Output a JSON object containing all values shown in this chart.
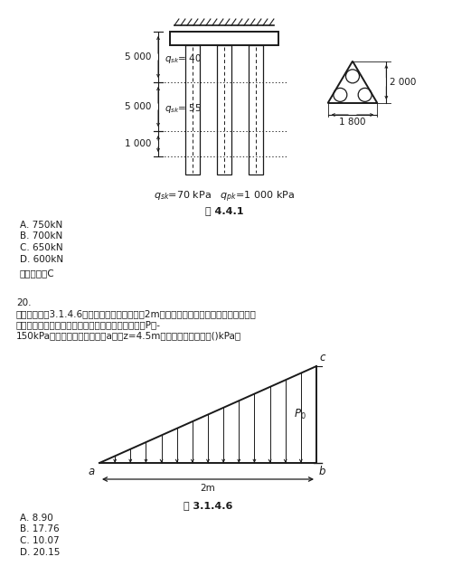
{
  "bg_color": "#ffffff",
  "fig_width": 5.0,
  "fig_height": 6.47,
  "dpi": 100,
  "section1": {
    "title": "图 4.4.1",
    "options": [
      "A. 750kN",
      "B. 700kN",
      "C. 650kN",
      "D. 600kN"
    ],
    "answer": "正确答案：C",
    "dim_5000_1": "5 000",
    "dim_5000_2": "5 000",
    "dim_1000": "1 000",
    "q_sk_40": "qₖₖ= 40",
    "q_sk_55": "qₖₖ= 55",
    "dim_2000": "2 000",
    "dim_1800": "1 800"
  },
  "section2": {
    "title": "图 3.1.4.6",
    "question_num": "20.",
    "question_text1": "单选题：如图3.1.4.6所示，已知条形基础基宽2m，作用在基底上的相应于荷载效应标准",
    "question_text2": "组合时的三角形荷载引起的基底附加压力值的最大值P。-",
    "question_text3": "150kPa，则此条形基础边缘线a点下z=4.5m处的竖向附加应力为()kPa。",
    "options": [
      "A. 8.90",
      "B. 17.76",
      "C. 10.07",
      "D. 20.15"
    ],
    "label_a": "a",
    "label_b": "b",
    "label_c": "c",
    "label_P": "P0",
    "dim_2m": "2m"
  }
}
